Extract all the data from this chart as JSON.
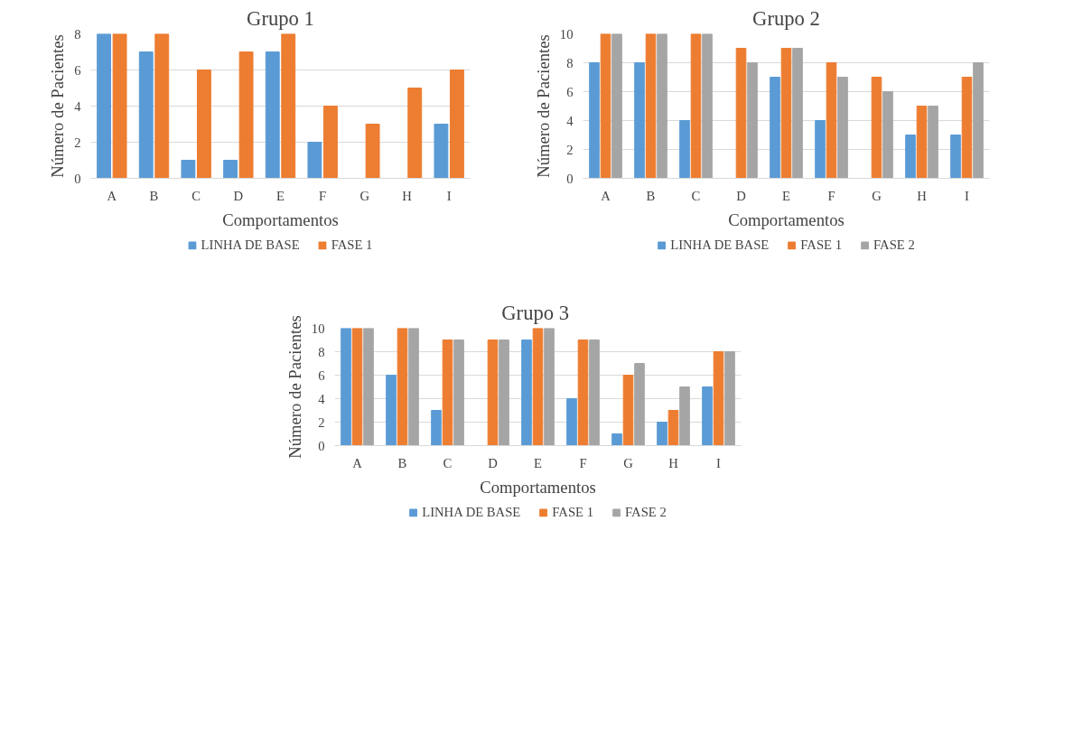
{
  "chart_data": [
    {
      "type": "bar",
      "title": "Grupo 1",
      "xlabel": "Comportamentos",
      "ylabel": "Número de Pacientes",
      "categories": [
        "A",
        "B",
        "C",
        "D",
        "E",
        "F",
        "G",
        "H",
        "I"
      ],
      "ylim": [
        0,
        8
      ],
      "yticks": [
        0,
        2,
        4,
        6,
        8
      ],
      "grid": "y",
      "legend": "bottom",
      "series": [
        {
          "name": "LINHA DE BASE",
          "color": "#5b9bd5",
          "values": [
            8,
            7,
            1,
            1,
            7,
            2,
            0,
            0,
            3
          ]
        },
        {
          "name": "FASE 1",
          "color": "#ed7d31",
          "values": [
            8,
            8,
            6,
            7,
            8,
            4,
            3,
            5,
            6
          ]
        }
      ]
    },
    {
      "type": "bar",
      "title": "Grupo 2",
      "xlabel": "Comportamentos",
      "ylabel": "Número de Pacientes",
      "categories": [
        "A",
        "B",
        "C",
        "D",
        "E",
        "F",
        "G",
        "H",
        "I"
      ],
      "ylim": [
        0,
        10
      ],
      "yticks": [
        0,
        2,
        4,
        6,
        8,
        10
      ],
      "grid": "y",
      "legend": "bottom",
      "series": [
        {
          "name": "LINHA DE BASE",
          "color": "#5b9bd5",
          "values": [
            8,
            8,
            4,
            0,
            7,
            4,
            0,
            3,
            3
          ]
        },
        {
          "name": "FASE 1",
          "color": "#ed7d31",
          "values": [
            10,
            10,
            10,
            9,
            9,
            8,
            7,
            5,
            7
          ]
        },
        {
          "name": "FASE 2",
          "color": "#a5a5a5",
          "values": [
            10,
            10,
            10,
            8,
            9,
            7,
            6,
            5,
            8
          ]
        }
      ]
    },
    {
      "type": "bar",
      "title": "Grupo  3",
      "xlabel": "Comportamentos",
      "ylabel": "Número de Pacientes",
      "categories": [
        "A",
        "B",
        "C",
        "D",
        "E",
        "F",
        "G",
        "H",
        "I"
      ],
      "ylim": [
        0,
        10
      ],
      "yticks": [
        0,
        2,
        4,
        6,
        8,
        10
      ],
      "grid": "y",
      "legend": "bottom",
      "series": [
        {
          "name": "LINHA DE BASE",
          "color": "#5b9bd5",
          "values": [
            10,
            6,
            3,
            0,
            9,
            4,
            1,
            2,
            5
          ]
        },
        {
          "name": "FASE 1",
          "color": "#ed7d31",
          "values": [
            10,
            10,
            9,
            9,
            10,
            9,
            6,
            3,
            8
          ]
        },
        {
          "name": "FASE 2",
          "color": "#a5a5a5",
          "values": [
            10,
            10,
            9,
            9,
            10,
            9,
            7,
            5,
            8
          ]
        }
      ]
    }
  ]
}
